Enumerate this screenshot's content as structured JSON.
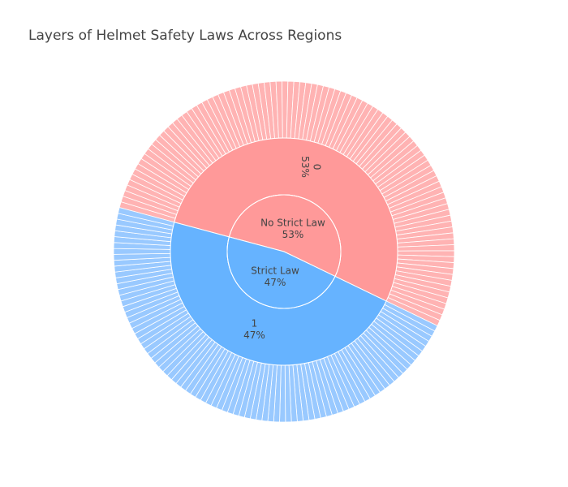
{
  "chart_data": {
    "type": "sunburst",
    "title": "Layers of Helmet Safety Laws Across Regions",
    "levels": [
      {
        "level": 1,
        "nodes": [
          {
            "label": "No Strict Law",
            "percent_text": "53%",
            "value": 53,
            "color": "#ff9999"
          },
          {
            "label": "Strict Law",
            "percent_text": "47%",
            "value": 47,
            "color": "#66b3ff"
          }
        ]
      },
      {
        "level": 2,
        "nodes": [
          {
            "label": "0",
            "parent": "No Strict Law",
            "percent_text": "53%",
            "value": 53,
            "color": "#ff9999"
          },
          {
            "label": "1",
            "parent": "Strict Law",
            "percent_text": "47%",
            "value": 47,
            "color": "#66b3ff"
          }
        ]
      },
      {
        "level": 3,
        "description_note": "many thin unlabeled leaf sectors (regions)",
        "groups": [
          {
            "parent": "0",
            "leaf_count": 95,
            "color": "#ffb3b3"
          },
          {
            "parent": "1",
            "leaf_count": 85,
            "color": "#99c9ff"
          }
        ]
      }
    ]
  }
}
